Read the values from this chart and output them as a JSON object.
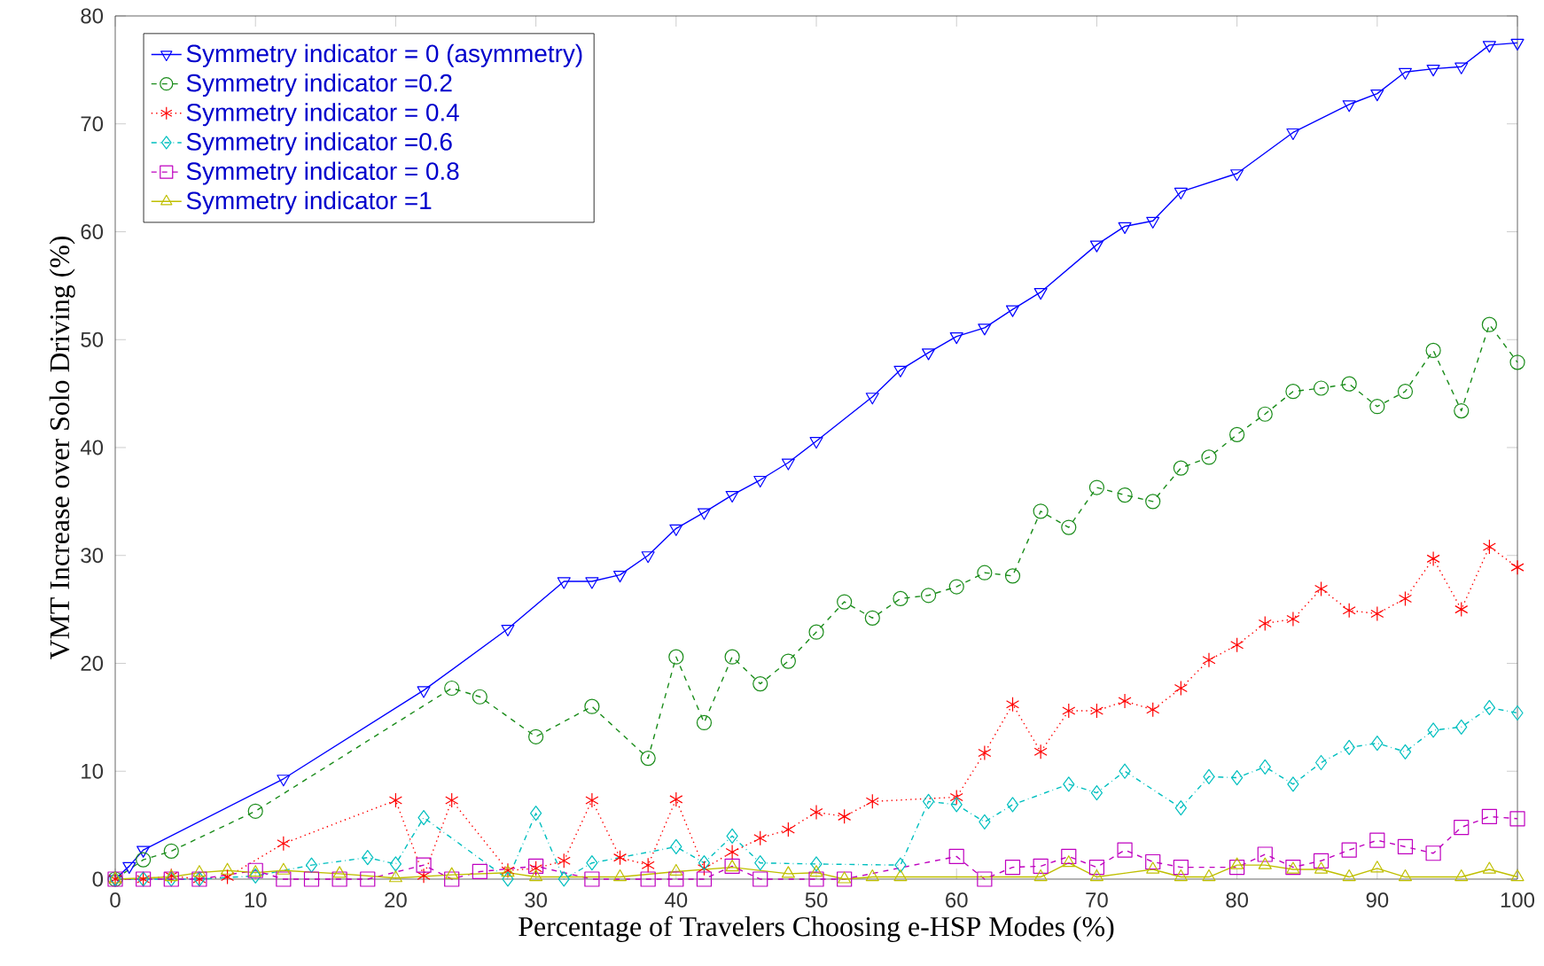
{
  "chart_data": {
    "type": "line",
    "xlabel": "Percentage of Travelers Choosing e-HSP Modes (%)",
    "ylabel": "VMT Increase over Solo Driving (%)",
    "xlim": [
      0,
      100
    ],
    "ylim": [
      0,
      80
    ],
    "xticks": [
      0,
      10,
      20,
      30,
      40,
      50,
      60,
      70,
      80,
      90,
      100
    ],
    "yticks": [
      0,
      10,
      20,
      30,
      40,
      50,
      60,
      70,
      80
    ],
    "legend": "top left",
    "series": [
      {
        "name": "Symmetry indicator = 0 (asymmetry)",
        "color": "#0000ff",
        "marker": "triangle_down",
        "line_style": "solid",
        "x": [
          0,
          1,
          2,
          12,
          22,
          28,
          32,
          34,
          36,
          38,
          40,
          42,
          44,
          46,
          48,
          50,
          54,
          56,
          58,
          60,
          62,
          64,
          66,
          70,
          72,
          74,
          76,
          80,
          84,
          88,
          90,
          92,
          94,
          96,
          98,
          100
        ],
        "values": [
          0,
          1.2,
          2.7,
          9.3,
          17.5,
          23.2,
          27.6,
          27.6,
          28.2,
          30.0,
          32.5,
          34.0,
          35.6,
          37.0,
          38.6,
          40.6,
          44.7,
          47.2,
          48.8,
          50.3,
          51.1,
          52.8,
          54.4,
          58.8,
          60.5,
          61.0,
          63.7,
          65.4,
          69.2,
          71.8,
          72.8,
          74.8,
          75.1,
          75.3,
          77.3,
          77.5
        ]
      },
      {
        "name": "Symmetry indicator =0.2",
        "color": "#1a8c1a",
        "marker": "circle",
        "line_style": "dashed",
        "x": [
          0,
          2,
          4,
          10,
          24,
          26,
          30,
          34,
          38,
          40,
          42,
          44,
          46,
          48,
          50,
          52,
          54,
          56,
          58,
          60,
          62,
          64,
          66,
          68,
          70,
          72,
          74,
          76,
          78,
          80,
          82,
          84,
          86,
          88,
          90,
          92,
          94,
          96,
          98,
          100
        ],
        "values": [
          0,
          1.8,
          2.6,
          6.3,
          17.7,
          16.9,
          13.2,
          16.0,
          11.2,
          20.6,
          14.5,
          20.6,
          18.1,
          20.2,
          22.9,
          25.7,
          24.2,
          26.0,
          26.3,
          27.1,
          28.4,
          28.1,
          34.1,
          32.6,
          36.3,
          35.6,
          35.0,
          38.1,
          39.1,
          41.2,
          43.1,
          45.2,
          45.5,
          45.9,
          43.8,
          45.2,
          49.0,
          43.4,
          51.4,
          47.9
        ]
      },
      {
        "name": "Symmetry indicator = 0.4",
        "color": "#ff0000",
        "marker": "cross",
        "line_style": "dotted",
        "x": [
          0,
          2,
          4,
          6,
          8,
          12,
          20,
          22,
          24,
          28,
          30,
          32,
          34,
          36,
          38,
          40,
          42,
          44,
          46,
          48,
          50,
          52,
          54,
          60,
          62,
          64,
          66,
          68,
          70,
          72,
          74,
          76,
          78,
          80,
          82,
          84,
          86,
          88,
          90,
          92,
          94,
          96,
          98,
          100
        ],
        "values": [
          0,
          0,
          0.3,
          0,
          0.2,
          3.3,
          7.3,
          0.3,
          7.3,
          0.8,
          1.0,
          1.7,
          7.3,
          2.0,
          1.3,
          7.4,
          1.0,
          2.5,
          3.8,
          4.6,
          6.2,
          5.8,
          7.2,
          7.6,
          11.7,
          16.2,
          11.8,
          15.6,
          15.6,
          16.5,
          15.7,
          17.7,
          20.3,
          21.7,
          23.7,
          24.1,
          26.9,
          24.9,
          24.6,
          26.0,
          29.7,
          25.0,
          30.8,
          28.9
        ]
      },
      {
        "name": "Symmetry indicator =0.6",
        "color": "#00bfbf",
        "marker": "diamond",
        "line_style": "dashdot",
        "x": [
          0,
          2,
          4,
          6,
          10,
          14,
          18,
          20,
          22,
          28,
          30,
          32,
          34,
          40,
          42,
          44,
          46,
          50,
          56,
          58,
          60,
          62,
          64,
          68,
          70,
          72,
          76,
          78,
          80,
          82,
          84,
          86,
          88,
          90,
          92,
          94,
          96,
          98,
          100
        ],
        "values": [
          0,
          0,
          0,
          0,
          0.3,
          1.3,
          2.0,
          1.4,
          5.7,
          0,
          6.1,
          0,
          1.5,
          3.0,
          1.5,
          4.0,
          1.5,
          1.4,
          1.3,
          7.2,
          6.9,
          5.3,
          6.9,
          8.8,
          8.0,
          10.0,
          6.6,
          9.5,
          9.4,
          10.4,
          8.8,
          10.8,
          12.2,
          12.6,
          11.8,
          13.8,
          14.1,
          15.9,
          15.4
        ]
      },
      {
        "name": "Symmetry indicator = 0.8",
        "color": "#bf00bf",
        "marker": "square",
        "line_style": "dashed",
        "x": [
          0,
          2,
          4,
          6,
          10,
          12,
          14,
          16,
          18,
          22,
          24,
          26,
          30,
          34,
          38,
          40,
          42,
          44,
          46,
          50,
          52,
          60,
          62,
          64,
          66,
          68,
          70,
          72,
          74,
          76,
          80,
          82,
          84,
          86,
          88,
          90,
          92,
          94,
          96,
          98,
          100
        ],
        "values": [
          0,
          0,
          0,
          0,
          0.8,
          0,
          0,
          0,
          0,
          1.3,
          0,
          0.7,
          1.2,
          0,
          0,
          0,
          0,
          1.2,
          0,
          0,
          0,
          2.1,
          0,
          1.1,
          1.2,
          2.1,
          1.1,
          2.7,
          1.6,
          1.1,
          1.1,
          2.3,
          1.1,
          1.7,
          2.7,
          3.6,
          3.0,
          2.4,
          4.8,
          5.8,
          5.6
        ]
      },
      {
        "name": "Symmetry indicator =1",
        "color": "#bfbf00",
        "marker": "triangle",
        "line_style": "solid",
        "x": [
          0,
          4,
          6,
          8,
          10,
          12,
          16,
          20,
          24,
          28,
          30,
          36,
          40,
          44,
          48,
          50,
          52,
          54,
          56,
          66,
          68,
          70,
          74,
          76,
          78,
          80,
          82,
          84,
          86,
          88,
          90,
          92,
          96,
          98,
          100
        ],
        "values": [
          0,
          0.2,
          0.6,
          0.8,
          0.6,
          0.8,
          0.5,
          0.1,
          0.4,
          0.6,
          0.2,
          0.2,
          0.7,
          1.1,
          0.5,
          0.6,
          0,
          0.2,
          0.2,
          0.2,
          1.5,
          0.2,
          0.9,
          0.2,
          0.2,
          1.3,
          1.3,
          0.9,
          0.9,
          0.2,
          1.0,
          0.2,
          0.2,
          0.9,
          0.2
        ]
      }
    ]
  }
}
